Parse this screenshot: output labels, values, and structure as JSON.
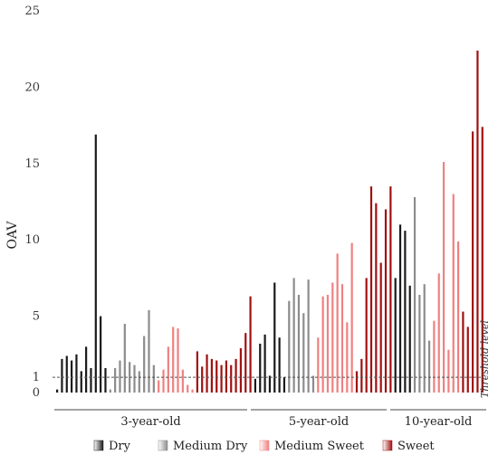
{
  "chart_data": {
    "type": "bar",
    "title": "",
    "xlabel": "",
    "ylabel": "OAV",
    "ylim": [
      0,
      25
    ],
    "yticks": [
      0,
      1,
      5,
      10,
      15,
      20,
      25
    ],
    "grid": false,
    "legend_position": "bottom",
    "threshold": {
      "value": 1,
      "label": "Threshold level"
    },
    "series": [
      {
        "name": "Dry",
        "color": "#1a1a1a"
      },
      {
        "name": "Medium Dry",
        "color": "#8c8c8c"
      },
      {
        "name": "Medium Sweet",
        "color": "#f08080"
      },
      {
        "name": "Sweet",
        "color": "#a01010"
      }
    ],
    "groups": [
      {
        "label": "3-year-old",
        "values": {
          "Dry": [
            0.2,
            2.2,
            2.4,
            2.1,
            2.5,
            1.4,
            3.0,
            1.6,
            16.9,
            5.0,
            1.6
          ],
          "Medium Dry": [
            0.2,
            1.6,
            2.1,
            4.5,
            2.0,
            1.8,
            1.4,
            3.7,
            5.4,
            1.8
          ],
          "Medium Sweet": [
            0.8,
            1.5,
            3.0,
            4.3,
            4.2,
            1.5,
            0.5,
            0.2
          ],
          "Sweet": [
            2.7,
            1.7,
            2.5,
            2.2,
            2.1,
            1.8,
            2.1,
            1.8,
            2.2,
            2.9,
            3.9,
            6.3
          ]
        }
      },
      {
        "label": "5-year-old",
        "values": {
          "Dry": [
            0.9,
            3.2,
            3.8,
            1.1,
            7.2,
            3.6,
            1.0
          ],
          "Medium Dry": [
            6.0,
            7.5,
            6.4,
            5.2,
            7.4,
            1.1
          ],
          "Medium Sweet": [
            3.6,
            6.3,
            6.4,
            7.2,
            9.1,
            7.1,
            4.6,
            9.8
          ],
          "Sweet": [
            1.4,
            2.2,
            7.5,
            13.5,
            12.4,
            8.5,
            12.0,
            13.5
          ]
        }
      },
      {
        "label": "10-year-old",
        "values": {
          "Dry": [
            7.5,
            11.0,
            10.6,
            7.0
          ],
          "Medium Dry": [
            12.8,
            6.4,
            7.1,
            3.4
          ],
          "Medium Sweet": [
            4.7,
            7.8,
            15.1,
            2.8,
            13.0,
            9.9
          ],
          "Sweet": [
            5.3,
            4.3,
            17.1,
            22.4,
            17.4
          ]
        }
      }
    ]
  }
}
